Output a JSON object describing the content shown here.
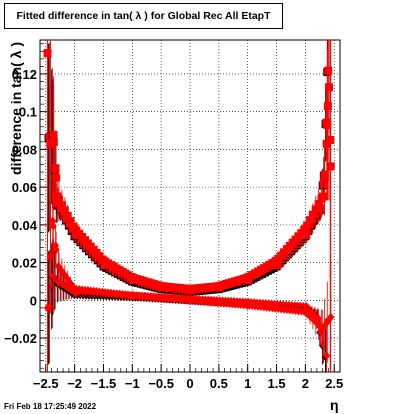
{
  "chart_data": {
    "type": "scatter",
    "title": "Fitted difference in tan( λ ) for Global Rec All EtapT",
    "xlabel": "η",
    "ylabel": "difference in tan( λ )",
    "xlim": [
      -2.6,
      2.6
    ],
    "ylim": [
      -0.038,
      0.138
    ],
    "x_ticks": [
      -2.5,
      -2,
      -1.5,
      -1,
      -0.5,
      0,
      0.5,
      1,
      1.5,
      2,
      2.5
    ],
    "x_tick_labels": [
      "−2.5",
      "−2",
      "−1.5",
      "−1",
      "−0.5",
      "0",
      "0.5",
      "1",
      "1.5",
      "2",
      "2.5"
    ],
    "y_ticks": [
      -0.02,
      0,
      0.02,
      0.04,
      0.06,
      0.08,
      0.1,
      0.12
    ],
    "y_tick_labels": [
      "−0.02",
      "0",
      "0.02",
      "0.04",
      "0.06",
      "0.08",
      "0.1",
      "0.12"
    ],
    "grid": true,
    "series": [
      {
        "marker": "square",
        "colors": [
          "#000000",
          "#ff0000"
        ],
        "points": [
          {
            "x": -2.45,
            "y": 0.086,
            "err": 0.05
          },
          {
            "x": -2.38,
            "y": 0.087,
            "err": 0.03
          },
          {
            "x": -2.32,
            "y": 0.051,
            "err": 0.01
          },
          {
            "x": -2.25,
            "y": 0.048,
            "err": 0.006
          },
          {
            "x": -2.0,
            "y": 0.034,
            "err": 0.002
          },
          {
            "x": -1.5,
            "y": 0.018,
            "err": 0.001
          },
          {
            "x": -1.0,
            "y": 0.01,
            "err": 0.001
          },
          {
            "x": -0.5,
            "y": 0.006,
            "err": 0.0005
          },
          {
            "x": 0.0,
            "y": 0.0045,
            "err": 0.0005
          },
          {
            "x": 0.5,
            "y": 0.006,
            "err": 0.0005
          },
          {
            "x": 1.0,
            "y": 0.01,
            "err": 0.001
          },
          {
            "x": 1.5,
            "y": 0.018,
            "err": 0.001
          },
          {
            "x": 2.0,
            "y": 0.034,
            "err": 0.002
          },
          {
            "x": 2.25,
            "y": 0.048,
            "err": 0.006
          },
          {
            "x": 2.32,
            "y": 0.066,
            "err": 0.01
          },
          {
            "x": 2.38,
            "y": 0.121,
            "err": 0.03
          }
        ]
      },
      {
        "marker": "square",
        "colors": [
          "#ff0000",
          "#ff0000"
        ],
        "points": [
          {
            "x": -2.47,
            "y": 0.131,
            "err": 0.1
          },
          {
            "x": -2.42,
            "y": 0.083,
            "err": 0.06
          },
          {
            "x": -2.36,
            "y": 0.084,
            "err": 0.03
          },
          {
            "x": -2.33,
            "y": 0.07,
            "err": 0.02
          },
          {
            "x": -2.3,
            "y": 0.055,
            "err": 0.01
          },
          {
            "x": -2.0,
            "y": 0.038,
            "err": 0.003
          },
          {
            "x": -1.5,
            "y": 0.021,
            "err": 0.001
          },
          {
            "x": -1.0,
            "y": 0.012,
            "err": 0.001
          },
          {
            "x": -0.5,
            "y": 0.0075,
            "err": 0.0005
          },
          {
            "x": 0.0,
            "y": 0.006,
            "err": 0.0005
          },
          {
            "x": 0.5,
            "y": 0.0075,
            "err": 0.0005
          },
          {
            "x": 1.0,
            "y": 0.012,
            "err": 0.001
          },
          {
            "x": 1.5,
            "y": 0.021,
            "err": 0.001
          },
          {
            "x": 2.0,
            "y": 0.038,
            "err": 0.003
          },
          {
            "x": 2.3,
            "y": 0.055,
            "err": 0.01
          },
          {
            "x": 2.33,
            "y": 0.065,
            "err": 0.02
          },
          {
            "x": 2.37,
            "y": 0.083,
            "err": 0.03
          },
          {
            "x": 2.39,
            "y": 0.103,
            "err": 0.05
          },
          {
            "x": 2.41,
            "y": 0.113,
            "err": 0.06
          },
          {
            "x": 2.44,
            "y": 0.071,
            "err": 0.08
          }
        ]
      },
      {
        "marker": "diamond",
        "colors": [
          "#000000",
          "#ff0000"
        ],
        "points": [
          {
            "x": -2.45,
            "y": -0.004,
            "err": 0.03
          },
          {
            "x": -2.38,
            "y": 0.012,
            "err": 0.02
          },
          {
            "x": -2.3,
            "y": 0.009,
            "err": 0.01
          },
          {
            "x": -2.0,
            "y": 0.003,
            "err": 0.002
          },
          {
            "x": -1.0,
            "y": 0.0018,
            "err": 0.001
          },
          {
            "x": 0.0,
            "y": 0.0,
            "err": 0.0005
          },
          {
            "x": 1.0,
            "y": -0.0018,
            "err": 0.001
          },
          {
            "x": 2.0,
            "y": -0.004,
            "err": 0.002
          },
          {
            "x": 2.2,
            "y": -0.01,
            "err": 0.005
          },
          {
            "x": 2.3,
            "y": -0.024,
            "err": 0.01
          },
          {
            "x": 2.35,
            "y": -0.03,
            "err": 0.02
          }
        ]
      },
      {
        "marker": "diamond",
        "colors": [
          "#ff0000",
          "#ff0000"
        ],
        "points": [
          {
            "x": -2.47,
            "y": -0.004,
            "err": 0.05
          },
          {
            "x": -2.42,
            "y": 0.023,
            "err": 0.03
          },
          {
            "x": -2.38,
            "y": 0.042,
            "err": 0.02
          },
          {
            "x": -2.33,
            "y": 0.029,
            "err": 0.01
          },
          {
            "x": -2.28,
            "y": 0.018,
            "err": 0.008
          },
          {
            "x": -2.0,
            "y": 0.006,
            "err": 0.002
          },
          {
            "x": -1.0,
            "y": 0.0025,
            "err": 0.001
          },
          {
            "x": 0.0,
            "y": 0.0,
            "err": 0.0005
          },
          {
            "x": 1.0,
            "y": -0.0025,
            "err": 0.001
          },
          {
            "x": 2.0,
            "y": -0.006,
            "err": 0.002
          },
          {
            "x": 2.3,
            "y": -0.015,
            "err": 0.01
          },
          {
            "x": 2.44,
            "y": -0.009,
            "err": 0.03
          }
        ]
      }
    ]
  },
  "footer": {
    "timestamp": "Fri Feb 18 17:25:49 2022"
  }
}
